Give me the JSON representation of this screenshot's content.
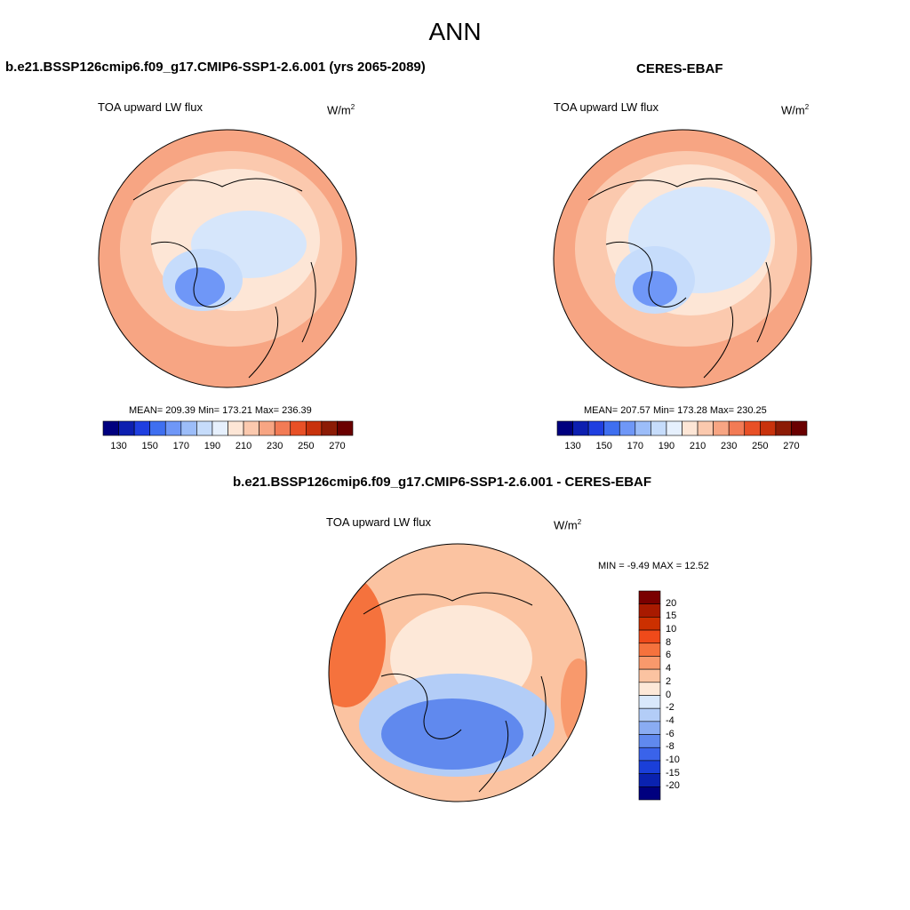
{
  "title": "ANN",
  "panels": [
    {
      "title": "b.e21.BSSP126cmip6.f09_g17.CMIP6-SSP1-2.6.001 (yrs 2065-2089)",
      "variable": "TOA upward LW flux",
      "units_base": "W/m",
      "units_exp": "2",
      "stats": "MEAN= 209.39  Min= 173.21  Max= 236.39"
    },
    {
      "title": "CERES-EBAF",
      "variable": "TOA upward LW flux",
      "units_base": "W/m",
      "units_exp": "2",
      "stats": "MEAN= 207.57  Min= 173.28  Max= 230.25"
    },
    {
      "title": "b.e21.BSSP126cmip6.f09_g17.CMIP6-SSP1-2.6.001 - CERES-EBAF",
      "variable": "TOA upward LW flux",
      "units_base": "W/m",
      "units_exp": "2",
      "stats": "MIN =  -9.49 MAX =  12.52"
    }
  ],
  "chart_data": [
    {
      "type": "heatmap",
      "projection": "north polar stereographic",
      "title": "b.e21.BSSP126cmip6.f09_g17.CMIP6-SSP1-2.6.001 (yrs 2065-2089)",
      "variable": "TOA upward LW flux",
      "units": "W/m2",
      "mean": 209.39,
      "min": 173.21,
      "max": 236.39,
      "colorbar_ticks": [
        "130",
        "150",
        "170",
        "190",
        "210",
        "230",
        "250",
        "270"
      ]
    },
    {
      "type": "heatmap",
      "projection": "north polar stereographic",
      "title": "CERES-EBAF",
      "variable": "TOA upward LW flux",
      "units": "W/m2",
      "mean": 207.57,
      "min": 173.28,
      "max": 230.25,
      "colorbar_ticks": [
        "130",
        "150",
        "170",
        "190",
        "210",
        "230",
        "250",
        "270"
      ]
    },
    {
      "type": "heatmap",
      "projection": "north polar stereographic",
      "title": "b.e21.BSSP126cmip6.f09_g17.CMIP6-SSP1-2.6.001 - CERES-EBAF",
      "variable": "TOA upward LW flux",
      "units": "W/m2",
      "min": -9.49,
      "max": 12.52,
      "colorbar_ticks": [
        "20",
        "15",
        "10",
        "8",
        "6",
        "4",
        "2",
        "0",
        "-2",
        "-4",
        "-6",
        "-8",
        "-10",
        "-15",
        "-20"
      ]
    }
  ],
  "palettes": {
    "abs_colors": [
      "#00007f",
      "#0d1fb0",
      "#1f3fe0",
      "#3f6ff0",
      "#6f97f7",
      "#9cbdf9",
      "#c6dcfb",
      "#e6f0fd",
      "#fde6d6",
      "#fbc9ae",
      "#f7a583",
      "#f27b55",
      "#e85026",
      "#c8320c",
      "#8c1b05",
      "#6a0000"
    ],
    "diff_colors": [
      "#7a0000",
      "#a81a00",
      "#cc3000",
      "#ef4a1a",
      "#f5723d",
      "#f8996c",
      "#fbc3a1",
      "#fde8d8",
      "#d9e8fb",
      "#b3cdf7",
      "#8aacf2",
      "#6089ee",
      "#3a63ea",
      "#1a3fd9",
      "#0a22b0",
      "#00007f"
    ]
  }
}
